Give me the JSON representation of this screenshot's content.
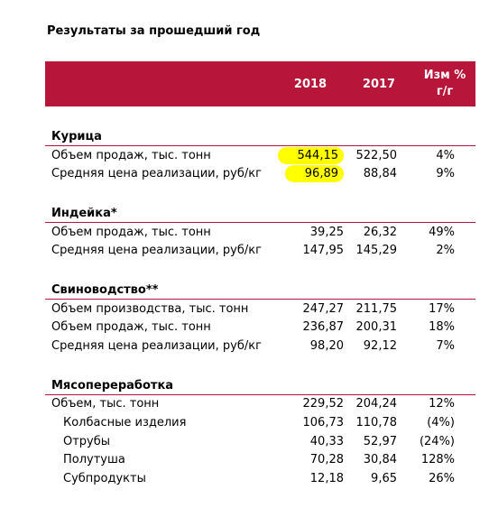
{
  "header": {
    "title": "Результаты за прошедший год"
  },
  "table": {
    "columns": [
      "2018",
      "2017",
      [
        "Изм %",
        "г/г"
      ]
    ],
    "sections": [
      {
        "title": "Курица",
        "rows": [
          {
            "label": "Объем продаж, тыс. тонн",
            "values": [
              "544,15",
              "522,50",
              "4%"
            ],
            "highlight": true
          },
          {
            "label": "Средняя цена реализации, руб/кг",
            "values": [
              "96,89",
              "88,84",
              "9%"
            ],
            "highlight": true
          }
        ]
      },
      {
        "title": "Индейка*",
        "rows": [
          {
            "label": "Объем продаж, тыс. тонн",
            "values": [
              "39,25",
              "26,32",
              "49%"
            ]
          },
          {
            "label": "Средняя цена реализации, руб/кг",
            "values": [
              "147,95",
              "145,29",
              "2%"
            ]
          }
        ]
      },
      {
        "title": "Свиноводство**",
        "rows": [
          {
            "label": "Объем производства, тыс. тонн",
            "values": [
              "247,27",
              "211,75",
              "17%"
            ]
          },
          {
            "label": "Объем продаж, тыс. тонн",
            "values": [
              "236,87",
              "200,31",
              "18%"
            ]
          },
          {
            "label": "Средняя цена реализации, руб/кг",
            "values": [
              "98,20",
              "92,12",
              "7%"
            ]
          }
        ]
      },
      {
        "title": "Мясопереработка",
        "rows": [
          {
            "label": "Объем, тыс. тонн",
            "values": [
              "229,52",
              "204,24",
              "12%"
            ],
            "children": [
              {
                "label": "Колбасные изделия",
                "values": [
                  "106,73",
                  "110,78",
                  "(4%)"
                ]
              },
              {
                "label": "Отрубы",
                "values": [
                  "40,33",
                  "52,97",
                  "(24%)"
                ]
              },
              {
                "label": "Полутуша",
                "values": [
                  "70,28",
                  "30,84",
                  "128%"
                ]
              },
              {
                "label": "Субпродукты",
                "values": [
                  "12,18",
                  "9,65",
                  "26%"
                ]
              }
            ]
          }
        ]
      }
    ]
  }
}
